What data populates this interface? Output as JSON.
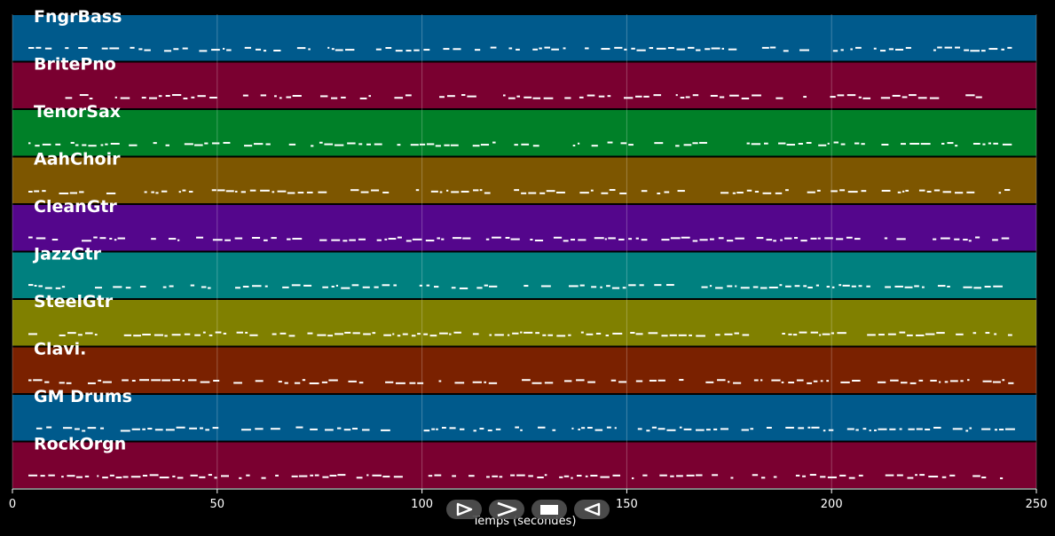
{
  "axis": {
    "xlabel": "Temps (secondes)",
    "xlim": [
      0,
      250
    ],
    "ticks": [
      "0",
      "50",
      "100",
      "150",
      "200",
      "250"
    ]
  },
  "tracks": [
    {
      "name": "FngrBass",
      "color": "#005a8c"
    },
    {
      "name": "BritePno",
      "color": "#7a0030"
    },
    {
      "name": "TenorSax",
      "color": "#008028"
    },
    {
      "name": "AahChoir",
      "color": "#7d5600"
    },
    {
      "name": "CleanGtr",
      "color": "#54068c"
    },
    {
      "name": "JazzGtr",
      "color": "#00807f"
    },
    {
      "name": "SteelGtr",
      "color": "#808000"
    },
    {
      "name": "Clavi.",
      "color": "#7a2100"
    },
    {
      "name": "GM Drums",
      "color": "#005a8c"
    },
    {
      "name": "RockOrgn",
      "color": "#7a0030"
    }
  ],
  "player": {
    "buttons": [
      {
        "name": "play-outline-icon"
      },
      {
        "name": "fast-forward-icon"
      },
      {
        "name": "stop-icon"
      },
      {
        "name": "rewind-icon"
      }
    ]
  }
}
